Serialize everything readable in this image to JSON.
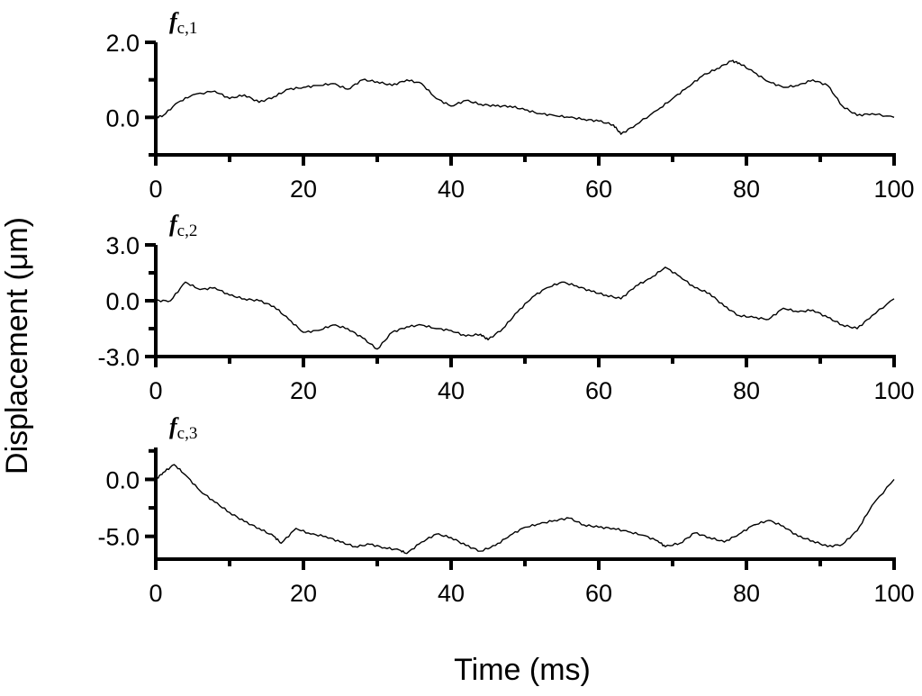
{
  "chart_data": {
    "type": "line",
    "ylabel": "Displacement (μm)",
    "xlabel": "Time (ms)",
    "panels": [
      {
        "label_main": "f",
        "label_sub": "c,1",
        "xlim": [
          0,
          100
        ],
        "ylim": [
          -1.0,
          2.0
        ],
        "x_ticks": [
          0,
          20,
          40,
          60,
          80,
          100
        ],
        "x_tick_labels": [
          "0",
          "20",
          "40",
          "60",
          "80",
          "100"
        ],
        "y_ticks": [
          0.0,
          2.0
        ],
        "y_tick_labels": [
          "0.0",
          "2.0"
        ],
        "x": [
          0,
          1,
          3,
          5,
          8,
          10,
          12,
          14,
          16,
          18,
          20,
          22,
          24,
          26,
          28,
          30,
          32,
          34,
          36,
          38,
          40,
          42,
          44,
          46,
          48,
          50,
          52,
          54,
          56,
          58,
          60,
          62,
          63,
          65,
          68,
          70,
          72,
          74,
          76,
          78,
          79,
          81,
          83,
          85,
          87,
          89,
          91,
          93,
          95,
          97,
          100
        ],
        "y": [
          0.0,
          0.05,
          0.4,
          0.6,
          0.7,
          0.5,
          0.6,
          0.4,
          0.55,
          0.75,
          0.8,
          0.85,
          0.9,
          0.75,
          1.0,
          0.95,
          0.85,
          1.0,
          0.9,
          0.5,
          0.3,
          0.45,
          0.35,
          0.3,
          0.3,
          0.2,
          0.1,
          0.05,
          0.0,
          -0.05,
          -0.1,
          -0.2,
          -0.45,
          -0.2,
          0.2,
          0.5,
          0.8,
          1.1,
          1.3,
          1.5,
          1.45,
          1.2,
          0.95,
          0.8,
          0.85,
          1.0,
          0.85,
          0.3,
          0.05,
          0.1,
          0.0
        ]
      },
      {
        "label_main": "f",
        "label_sub": "c,2",
        "xlim": [
          0,
          100
        ],
        "ylim": [
          -3.0,
          3.0
        ],
        "x_ticks": [
          0,
          20,
          40,
          60,
          80,
          100
        ],
        "x_tick_labels": [
          "0",
          "20",
          "40",
          "60",
          "80",
          "100"
        ],
        "y_ticks": [
          -3.0,
          0.0,
          3.0
        ],
        "y_tick_labels": [
          "-3.0",
          "0.0",
          "3.0"
        ],
        "x": [
          0,
          2,
          4,
          6,
          8,
          10,
          12,
          14,
          16,
          18,
          20,
          22,
          24,
          26,
          28,
          30,
          32,
          34,
          36,
          38,
          40,
          42,
          44,
          45,
          47,
          49,
          51,
          53,
          55,
          57,
          59,
          61,
          63,
          65,
          67,
          69,
          71,
          73,
          75,
          77,
          79,
          81,
          83,
          85,
          87,
          89,
          91,
          93,
          95,
          97,
          100
        ],
        "y": [
          0.0,
          0.0,
          1.0,
          0.6,
          0.7,
          0.3,
          0.1,
          0.0,
          -0.3,
          -1.0,
          -1.7,
          -1.6,
          -1.3,
          -1.5,
          -2.0,
          -2.6,
          -1.7,
          -1.4,
          -1.3,
          -1.5,
          -1.6,
          -1.9,
          -1.8,
          -2.1,
          -1.5,
          -0.6,
          0.2,
          0.7,
          1.0,
          0.8,
          0.5,
          0.3,
          0.1,
          0.8,
          1.2,
          1.8,
          1.3,
          0.7,
          0.4,
          -0.3,
          -0.8,
          -0.9,
          -1.0,
          -0.4,
          -0.6,
          -0.5,
          -0.9,
          -1.3,
          -1.5,
          -0.8,
          0.1
        ]
      },
      {
        "label_main": "f",
        "label_sub": "c,3",
        "xlim": [
          0,
          100
        ],
        "ylim": [
          -7.0,
          2.8
        ],
        "x_ticks": [
          0,
          20,
          40,
          60,
          80,
          100
        ],
        "x_tick_labels": [
          "0",
          "20",
          "40",
          "60",
          "80",
          "100"
        ],
        "y_ticks": [
          -5.0,
          0.0
        ],
        "y_tick_labels": [
          "-5.0",
          "0.0"
        ],
        "x": [
          0,
          1,
          2.5,
          4,
          6,
          8,
          10,
          12,
          14,
          16,
          17,
          19,
          21,
          23,
          25,
          27,
          29,
          31,
          33,
          34,
          36,
          38,
          40,
          42,
          44,
          46,
          48,
          50,
          52,
          54,
          56,
          58,
          60,
          62,
          64,
          66,
          68,
          69,
          71,
          73,
          75,
          77,
          79,
          81,
          83,
          85,
          87,
          89,
          91,
          93,
          95,
          97,
          100
        ],
        "y": [
          0.0,
          0.6,
          1.3,
          0.4,
          -1.0,
          -2.0,
          -2.9,
          -3.7,
          -4.3,
          -5.0,
          -5.6,
          -4.3,
          -4.8,
          -5.0,
          -5.5,
          -5.9,
          -5.7,
          -6.0,
          -6.2,
          -6.5,
          -5.5,
          -4.8,
          -5.1,
          -5.8,
          -6.3,
          -5.8,
          -4.9,
          -4.2,
          -3.9,
          -3.6,
          -3.4,
          -4.0,
          -4.2,
          -4.3,
          -4.6,
          -4.9,
          -5.4,
          -5.9,
          -5.6,
          -4.7,
          -5.1,
          -5.5,
          -4.8,
          -4.0,
          -3.6,
          -4.1,
          -5.0,
          -5.4,
          -5.9,
          -5.7,
          -4.5,
          -2.3,
          0.0
        ]
      }
    ]
  }
}
